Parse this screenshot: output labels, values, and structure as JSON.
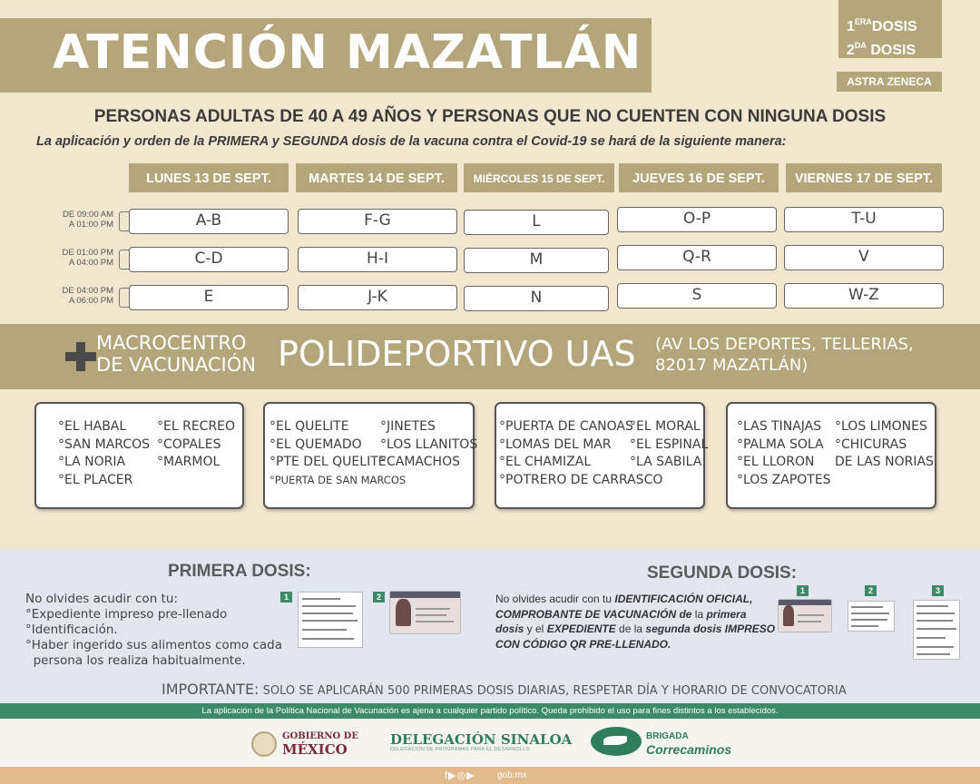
{
  "header": {
    "title": "ATENCIÓN MAZATLÁN",
    "dose_1_num": "1",
    "dose_1_sup": "ERA",
    "dose_2_num": "2",
    "dose_2_sup": "DA",
    "dose_word": "DOSIS",
    "vaccine": "ASTRA ZENECA"
  },
  "subtitle": "PERSONAS ADULTAS DE 40 A 49 AÑOS Y PERSONAS QUE NO CUENTEN CON NINGUNA DOSIS",
  "note": "La aplicación y orden de la PRIMERA y SEGUNDA dosis de la vacuna contra el Covid-19 se hará de la siguiente manera:",
  "schedule": {
    "days": [
      "LUNES 13 DE SEPT.",
      "MARTES 14 DE SEPT.",
      "MIÉRCOLES 15 DE SEPT.",
      "JUEVES 16 DE SEPT.",
      "VIERNES 17 DE SEPT."
    ],
    "slots": [
      {
        "from": "DE 09:00 AM",
        "to": "A 01:00 PM",
        "letters": [
          "A-B",
          "F-G",
          "L",
          "O-P",
          "T-U"
        ]
      },
      {
        "from": "DE 01:00 PM",
        "to": "A 04:00 PM",
        "letters": [
          "C-D",
          "H-I",
          "M",
          "Q-R",
          "V"
        ]
      },
      {
        "from": "DE 04:00 PM",
        "to": "A 06:00 PM",
        "letters": [
          "E",
          "J-K",
          "N",
          "S",
          "W-Z"
        ]
      }
    ]
  },
  "venue": {
    "type_line1": "MACROCENTRO",
    "type_line2": "DE VACUNACIÓN",
    "name": "POLIDEPORTIVO UAS",
    "address_line1": "(AV LOS DEPORTES, TELLERIAS,",
    "address_line2": "82017 MAZATLÁN)"
  },
  "localities": [
    {
      "col1": [
        "°EL HABAL",
        "°SAN MARCOS",
        "°LA NORIA",
        "°EL PLACER"
      ],
      "col2": [
        "°EL RECREO",
        "°COPALES",
        "°MARMOL"
      ]
    },
    {
      "col1": [
        "°EL QUELITE",
        "°EL QUEMADO",
        "°PTE DEL QUELITE",
        "°PUERTA DE SAN MARCOS"
      ],
      "col2": [
        "°JINETES",
        "°LOS LLANITOS",
        "°CAMACHOS"
      ]
    },
    {
      "col1": [
        "°PUERTA DE CANOAS",
        "°LOMAS DEL MAR",
        "°EL CHAMIZAL",
        "°POTRERO DE CARRASCO"
      ],
      "col2": [
        "°EL MORAL",
        "°EL ESPINAL",
        "°LA SABILA"
      ]
    },
    {
      "col1": [
        "°LAS TINAJAS",
        "°PALMA SOLA",
        "°EL LLORON",
        "°LOS ZAPOTES"
      ],
      "col2": [
        "°LOS LIMONES",
        "°CHICURAS",
        "DE LAS NORIAS"
      ]
    }
  ],
  "first_dose": {
    "title": "PRIMERA DOSIS:",
    "lines": [
      "No olvides acudir con tu:",
      "°Expediente impreso pre-llenado",
      "°Identificación.",
      "°Haber ingerido sus alimentos como cada",
      "  persona los realiza habitualmente."
    ],
    "tags": [
      "1",
      "2"
    ]
  },
  "second_dose": {
    "title": "SEGUNDA DOSIS:",
    "p1": "No olvides acudir con tu ",
    "p2": "IDENTIFICACIÓN OFICIAL, COMPROBANTE DE VACUNACIÓN de",
    "p3": " la ",
    "p4": "primera dosis",
    "p5": " y el ",
    "p6": "EXPEDIENTE",
    "p7": " de la ",
    "p8": "segunda dosis IMPRESO CON CÓDIGO QR PRE-LLENADO.",
    "tags": [
      "1",
      "2",
      "3"
    ]
  },
  "important": {
    "label": "IMPORTANTE:",
    "text": " SOLO SE APLICARÁN 500 PRIMERAS DOSIS DIARIAS, RESPETAR DÍA Y HORARIO DE CONVOCATORIA"
  },
  "disclaimer": "La aplicación de la Política Nacional de Vacunación es ajena a cualquier partido político. Queda prohibido el uso para fines distintos a los establecidos.",
  "logos": {
    "gob_line1": "GOBIERNO DE",
    "gob_line2": "MÉXICO",
    "delegacion": "DELEGACIÓN SINALOA",
    "delegacion_sub": "DELEGACIÓN DE PROGRAMAS PARA EL DESARROLLO",
    "brigada_line1": "BRIGADA",
    "brigada_line2": "Correcaminos"
  },
  "footer": {
    "social": "f▶◎▶",
    "site": "gob.mx"
  },
  "colors": {
    "gold": "#b5a57b",
    "cream": "#f1e7cf",
    "green": "#3d8a6a",
    "guinda": "#7a2b3a",
    "footer": "#e2bb8d"
  }
}
